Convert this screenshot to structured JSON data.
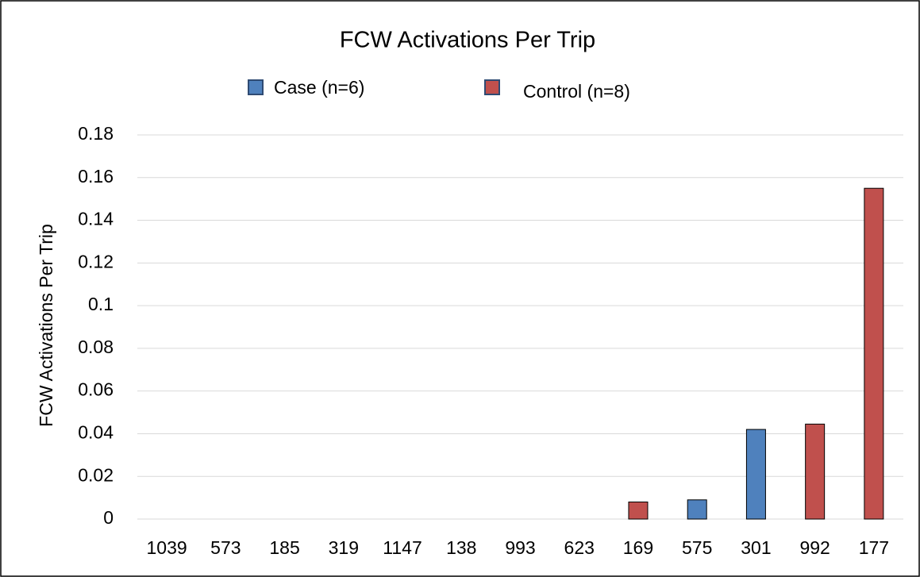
{
  "chart_data": {
    "type": "bar",
    "title": "FCW Activations Per Trip",
    "y_label": "FCW Activations Per Trip",
    "categories": [
      "1039",
      "573",
      "185",
      "319",
      "1147",
      "138",
      "993",
      "623",
      "169",
      "575",
      "301",
      "992",
      "177"
    ],
    "series": [
      {
        "name": "Case (n=6)",
        "color": "#4f81bd",
        "values": [
          null,
          null,
          null,
          null,
          null,
          null,
          null,
          null,
          null,
          0.009,
          0.042,
          null,
          null
        ]
      },
      {
        "name": "Control (n=8)",
        "color": "#c0504d",
        "values": [
          null,
          null,
          null,
          null,
          null,
          null,
          null,
          null,
          0.008,
          null,
          null,
          0.0445,
          0.155
        ]
      }
    ],
    "ylim": [
      0,
      0.18
    ],
    "yticks": [
      0,
      0.02,
      0.04,
      0.06,
      0.08,
      0.1,
      0.12,
      0.14,
      0.16,
      0.18
    ],
    "grid": true
  }
}
